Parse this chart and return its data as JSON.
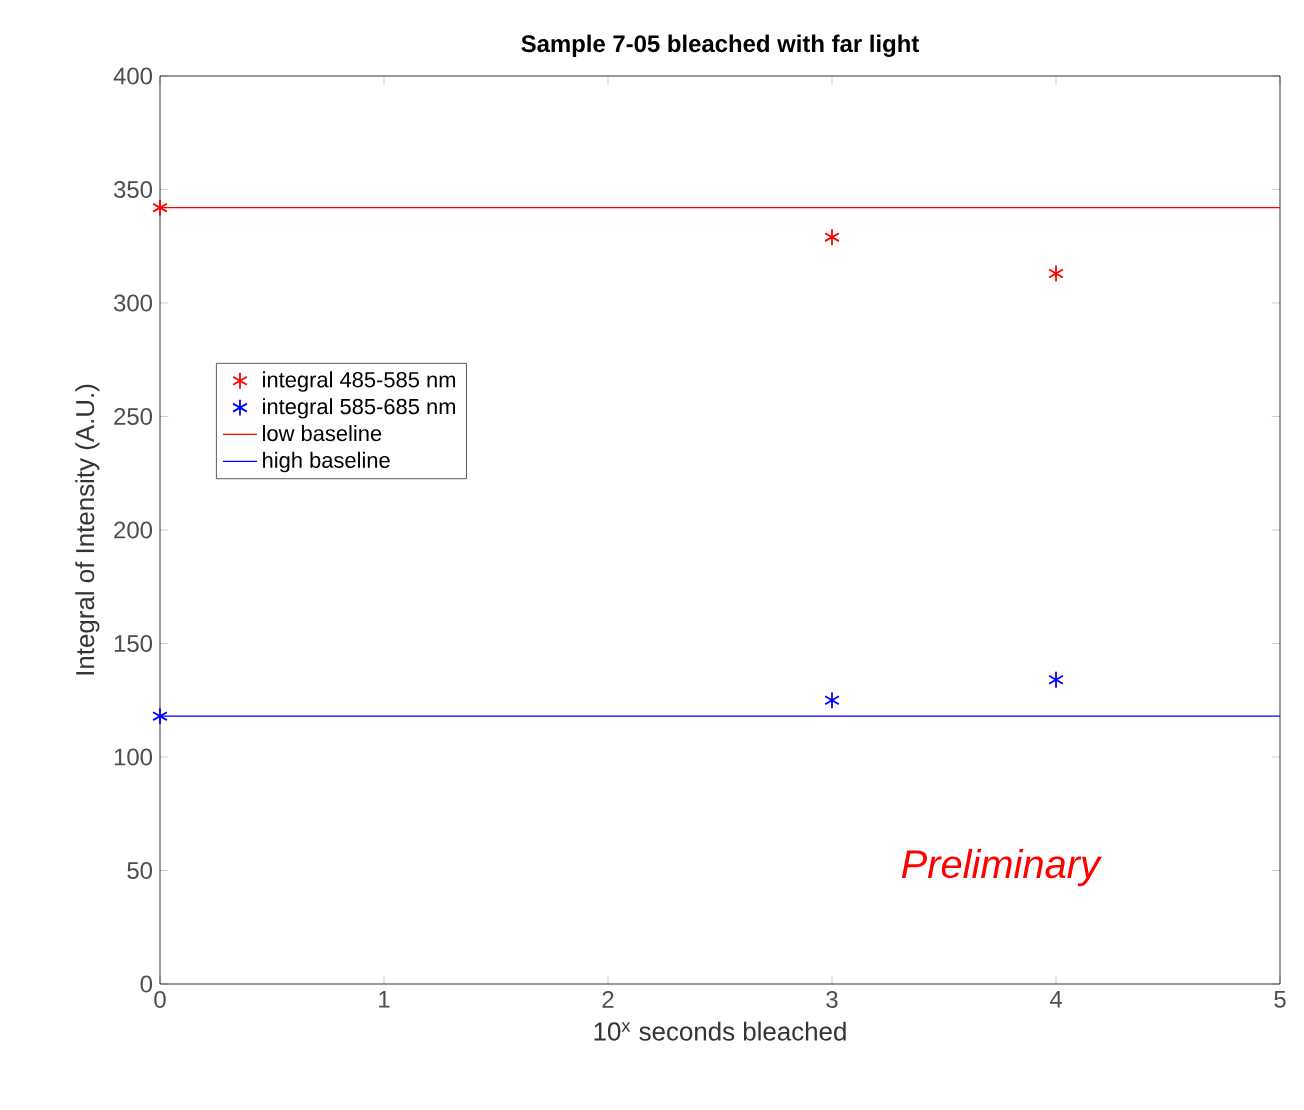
{
  "chart_data": {
    "type": "scatter",
    "title": "Sample 7-05 bleached with far light",
    "xlabel": "10$^{x}$ seconds bleached",
    "ylabel": "Integral of Intensity (A.U.)",
    "xlim": [
      0,
      5
    ],
    "ylim": [
      0,
      400
    ],
    "xticks": [
      0,
      1,
      2,
      3,
      4,
      5
    ],
    "yticks": [
      0,
      50,
      100,
      150,
      200,
      250,
      300,
      350,
      400
    ],
    "series": [
      {
        "name": "integral 485-585 nm",
        "marker": "cross",
        "color": "#ff0000",
        "x": [
          0,
          3,
          4
        ],
        "values": [
          342,
          329,
          313
        ]
      },
      {
        "name": "integral 585-685 nm",
        "marker": "cross",
        "color": "#0000ff",
        "x": [
          0,
          3,
          4
        ],
        "values": [
          118,
          125,
          134
        ]
      },
      {
        "name": "low baseline",
        "type": "line",
        "marker": "none",
        "line_style": "solid",
        "color": "#ff0000",
        "x": [
          0,
          5
        ],
        "values": [
          342,
          342
        ]
      },
      {
        "name": "high baseline",
        "type": "line",
        "marker": "none",
        "line_style": "solid",
        "color": "#0000ff",
        "x": [
          0,
          5
        ],
        "values": [
          118,
          118
        ]
      }
    ],
    "legend": "left",
    "grid": false,
    "annotations": [
      "*Preliminary*"
    ]
  }
}
